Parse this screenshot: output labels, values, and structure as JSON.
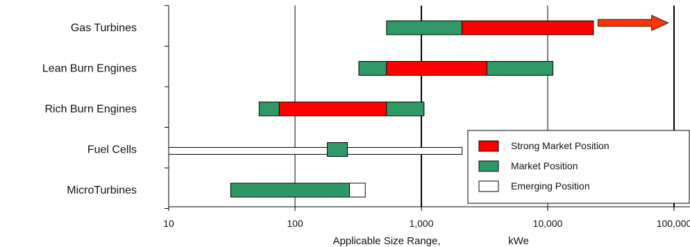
{
  "chart_data": {
    "type": "bar",
    "orientation": "horizontal",
    "subtype": "floating-range",
    "x_scale": "log",
    "xlim": [
      10,
      100000
    ],
    "x_ticks": [
      10,
      100,
      1000,
      10000,
      100000
    ],
    "x_tick_labels": [
      "10",
      "100",
      "1,000",
      "10,000",
      "100,000"
    ],
    "xlabel_parts": [
      "Applicable Size Range,",
      "kWe"
    ],
    "ylabel": "",
    "title": "",
    "grid": "vertical-at-decades",
    "legend_position": "bottom-right",
    "categories": [
      "Gas Turbines",
      "Lean Burn Engines",
      "Rich Burn Engines",
      "Fuel Cells",
      "MicroTurbines"
    ],
    "series": [
      {
        "name": "Strong Market  Position",
        "color": "#ff0000",
        "ranges": [
          [
            2100,
            23000
          ],
          [
            530,
            3300
          ],
          [
            75,
            530
          ],
          null,
          null
        ]
      },
      {
        "name": "Market Position",
        "color": "#2e9866",
        "ranges": [
          [
            530,
            2100
          ],
          [
            320,
            11000
          ],
          [
            52,
            1050
          ],
          [
            180,
            260
          ],
          [
            31,
            270
          ]
        ]
      },
      {
        "name": "Emerging Position",
        "color": "#ffffff",
        "ranges": [
          null,
          null,
          null,
          [
            10,
            2100
          ],
          [
            31,
            360
          ]
        ]
      }
    ],
    "annotations": [
      {
        "type": "arrow",
        "category": "Gas Turbines",
        "direction": "right",
        "from": 25000,
        "to": 90000,
        "color": "#ff3300"
      }
    ]
  }
}
